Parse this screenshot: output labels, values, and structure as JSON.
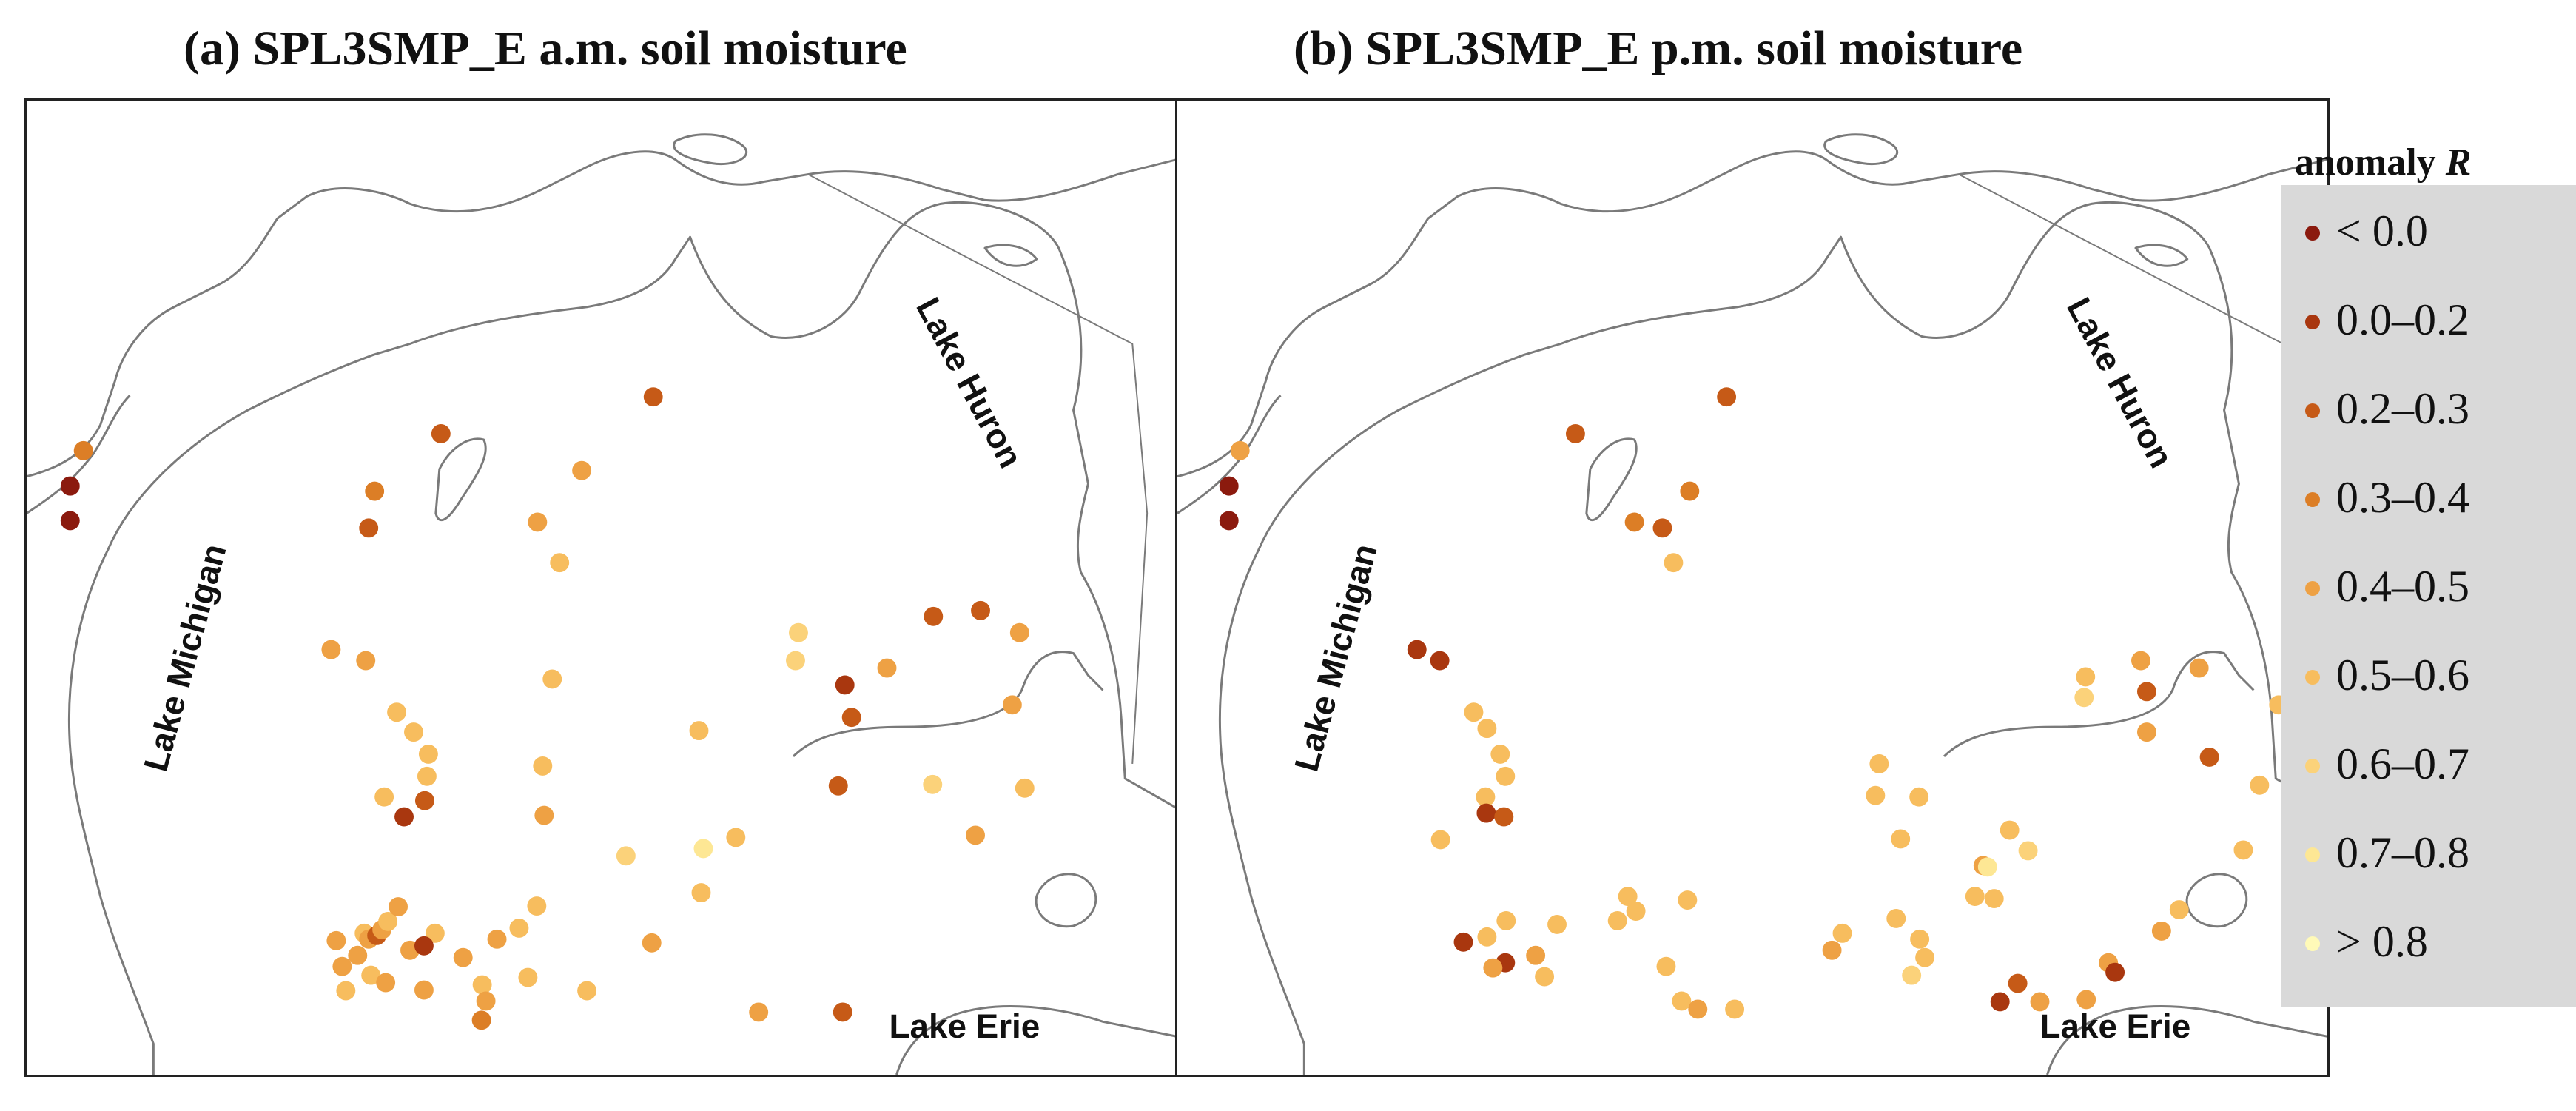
{
  "panels": [
    {
      "title": "(a) SPL3SMP_E  a.m. soil moisture"
    },
    {
      "title": "(b) SPL3SMP_E  p.m. soil moisture"
    }
  ],
  "lake_labels": {
    "michigan": "Lake Michigan",
    "huron": "Lake Huron",
    "erie": "Lake Erie"
  },
  "legend": {
    "title": "anomaly",
    "title_var": "R",
    "items": [
      {
        "label": "< 0.0",
        "color": "#8b1a0e"
      },
      {
        "label": "0.0–0.2",
        "color": "#a9370f"
      },
      {
        "label": "0.2–0.3",
        "color": "#c65a17"
      },
      {
        "label": "0.3–0.4",
        "color": "#dc7e26"
      },
      {
        "label": "0.4–0.5",
        "color": "#eea144"
      },
      {
        "label": "0.5–0.6",
        "color": "#f7bd5e"
      },
      {
        "label": "0.6–0.7",
        "color": "#fbd27a"
      },
      {
        "label": "0.7–0.8",
        "color": "#fde794"
      },
      {
        "label": "> 0.8",
        "color": "#fffab8"
      }
    ]
  },
  "colors": {
    "coastline": "#7a7a7a",
    "frame": "#222222",
    "legend_bg": "#d9d9d9"
  }
}
